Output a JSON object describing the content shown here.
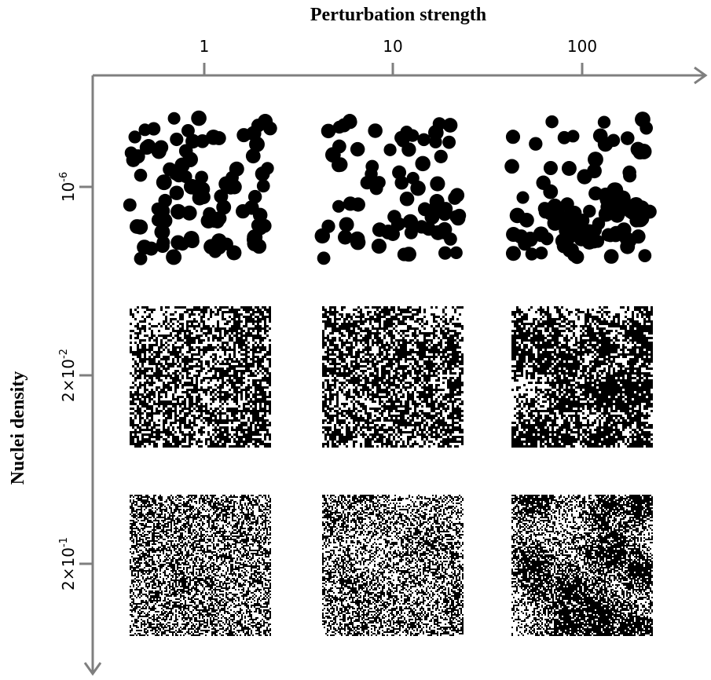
{
  "header": {
    "x_axis_title": "Perturbation strength",
    "y_axis_title": "Nuclei density"
  },
  "columns": [
    "1",
    "10",
    "100"
  ],
  "rows": [
    {
      "base": "10",
      "exponent": "-6"
    },
    {
      "base": "2×10",
      "exponent": "-2"
    },
    {
      "base": "2×10",
      "exponent": "-1"
    }
  ]
}
